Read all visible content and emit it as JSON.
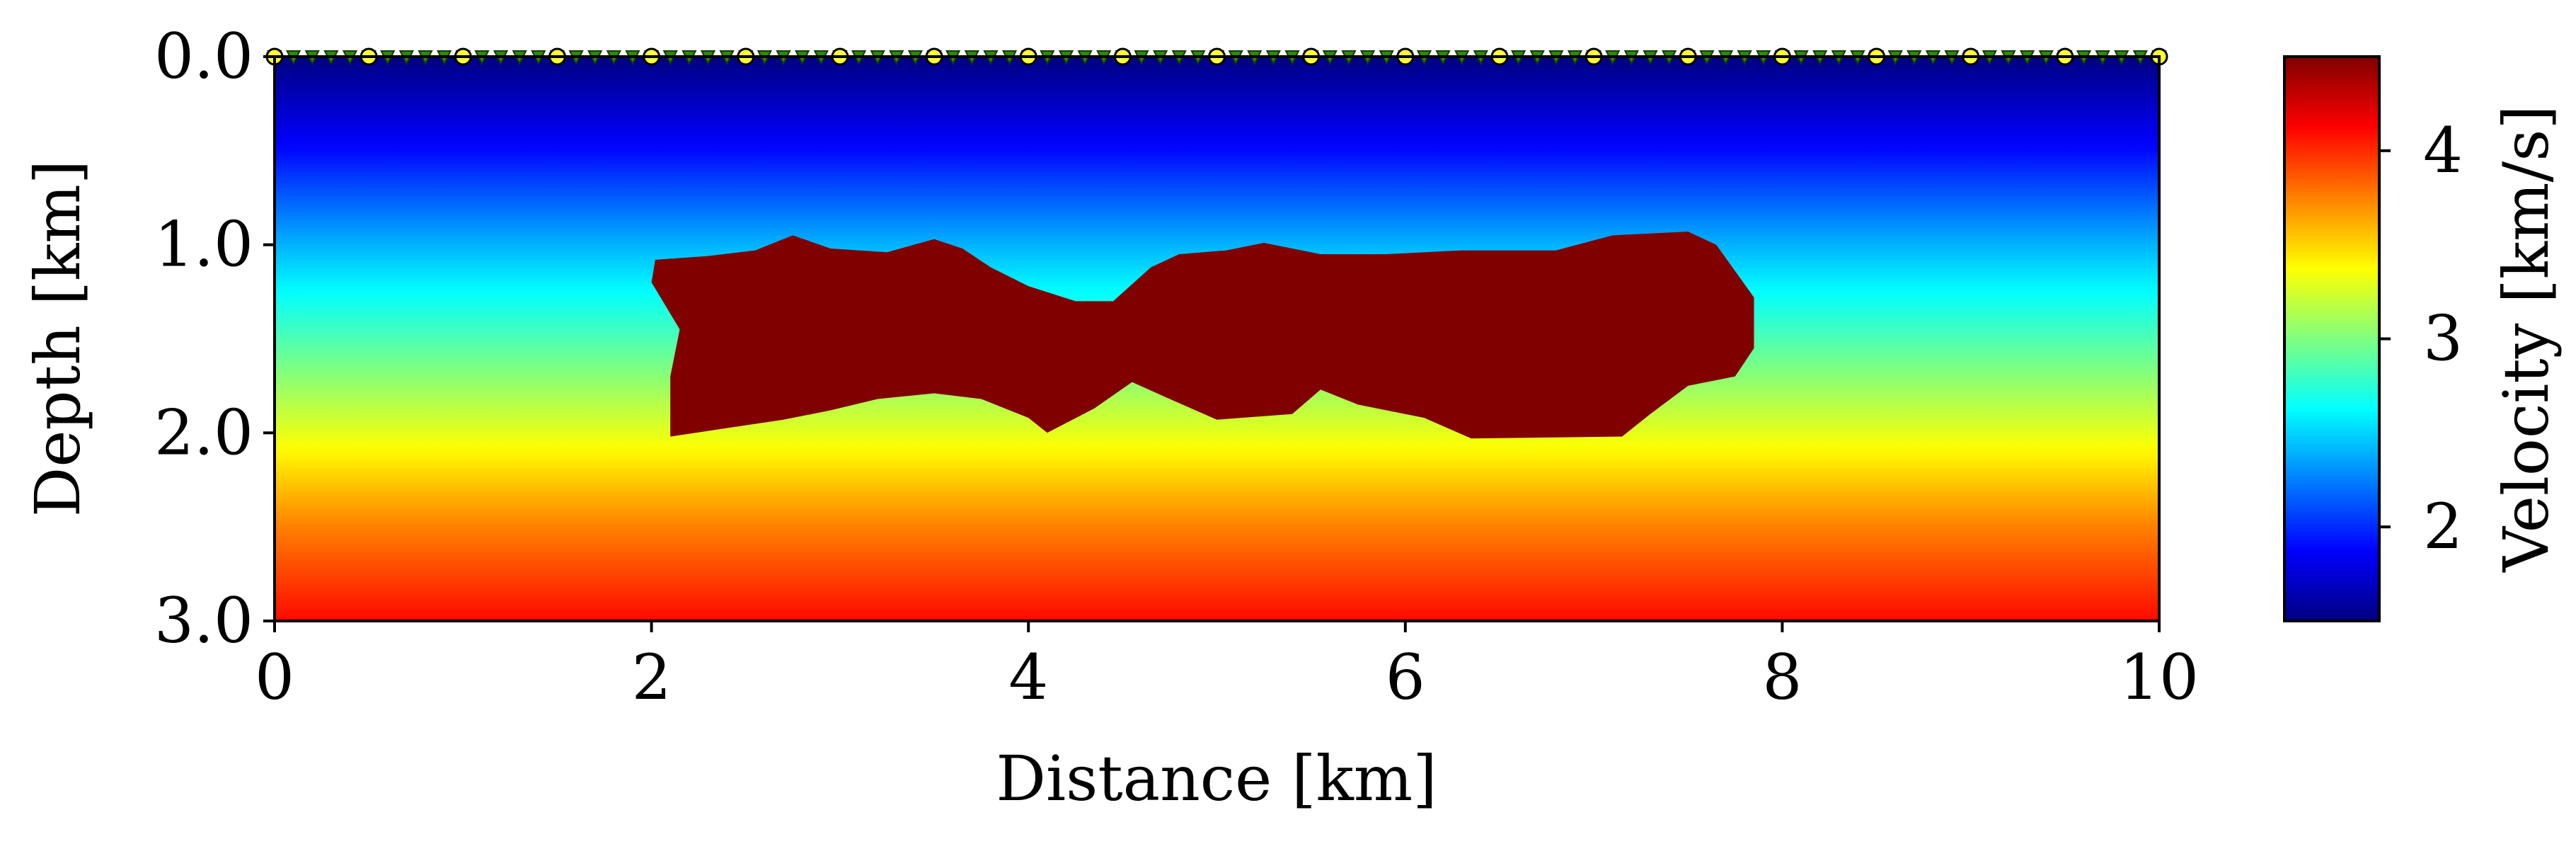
{
  "chart_data": {
    "type": "heatmap",
    "xlabel": "Distance [km]",
    "ylabel": "Depth [km]",
    "xlim": [
      0,
      10
    ],
    "ylim": [
      3.0,
      0.0
    ],
    "x_ticks": [
      "0",
      "2",
      "4",
      "6",
      "8",
      "10"
    ],
    "x_tick_values": [
      0,
      2,
      4,
      6,
      8,
      10
    ],
    "y_ticks": [
      "0.0",
      "1.0",
      "2.0",
      "3.0"
    ],
    "y_tick_values": [
      0.0,
      1.0,
      2.0,
      3.0
    ],
    "colormap": "jet",
    "colorbar": {
      "label": "Velocity [km/s]",
      "range": [
        1.5,
        4.5
      ],
      "ticks": [
        "2",
        "3",
        "4"
      ],
      "tick_values": [
        2,
        3,
        4
      ]
    },
    "background_velocity_by_depth": [
      {
        "depth": 0.0,
        "velocity": 1.5
      },
      {
        "depth": 0.5,
        "velocity": 1.9
      },
      {
        "depth": 1.0,
        "velocity": 2.4
      },
      {
        "depth": 1.5,
        "velocity": 2.85
      },
      {
        "depth": 2.0,
        "velocity": 3.3
      },
      {
        "depth": 2.5,
        "velocity": 3.75
      },
      {
        "depth": 3.0,
        "velocity": 4.1
      }
    ],
    "anomaly": {
      "velocity": 4.5,
      "outline": [
        [
          2.02,
          1.08
        ],
        [
          2.3,
          1.06
        ],
        [
          2.55,
          1.03
        ],
        [
          2.75,
          0.95
        ],
        [
          2.95,
          1.02
        ],
        [
          3.25,
          1.04
        ],
        [
          3.5,
          0.97
        ],
        [
          3.65,
          1.02
        ],
        [
          3.8,
          1.12
        ],
        [
          4.0,
          1.22
        ],
        [
          4.25,
          1.3
        ],
        [
          4.45,
          1.3
        ],
        [
          4.65,
          1.12
        ],
        [
          4.8,
          1.05
        ],
        [
          5.05,
          1.03
        ],
        [
          5.25,
          0.99
        ],
        [
          5.55,
          1.05
        ],
        [
          5.9,
          1.05
        ],
        [
          6.3,
          1.03
        ],
        [
          6.8,
          1.03
        ],
        [
          7.1,
          0.95
        ],
        [
          7.5,
          0.93
        ],
        [
          7.65,
          1.0
        ],
        [
          7.85,
          1.28
        ],
        [
          7.85,
          1.55
        ],
        [
          7.75,
          1.7
        ],
        [
          7.5,
          1.75
        ],
        [
          7.3,
          1.9
        ],
        [
          7.15,
          2.02
        ],
        [
          6.35,
          2.03
        ],
        [
          6.1,
          1.92
        ],
        [
          5.75,
          1.85
        ],
        [
          5.55,
          1.77
        ],
        [
          5.4,
          1.9
        ],
        [
          5.0,
          1.93
        ],
        [
          4.75,
          1.82
        ],
        [
          4.55,
          1.73
        ],
        [
          4.35,
          1.87
        ],
        [
          4.1,
          2.0
        ],
        [
          4.0,
          1.92
        ],
        [
          3.75,
          1.82
        ],
        [
          3.5,
          1.79
        ],
        [
          3.2,
          1.82
        ],
        [
          2.95,
          1.88
        ],
        [
          2.7,
          1.93
        ],
        [
          2.1,
          2.02
        ],
        [
          2.1,
          1.7
        ],
        [
          2.15,
          1.45
        ],
        [
          2.0,
          1.2
        ]
      ]
    },
    "sources": {
      "marker": "yellow-circle",
      "depth": 0.0,
      "x": [
        0,
        0.5,
        1.0,
        1.5,
        2.0,
        2.5,
        3.0,
        3.5,
        4.0,
        4.5,
        5.0,
        5.5,
        6.0,
        6.5,
        7.0,
        7.5,
        8.0,
        8.5,
        9.0,
        9.5,
        10.0
      ]
    },
    "receivers": {
      "marker": "green-triangle",
      "depth": 0.0,
      "x_start": 0.0,
      "x_end": 10.0,
      "spacing": 0.1
    }
  }
}
